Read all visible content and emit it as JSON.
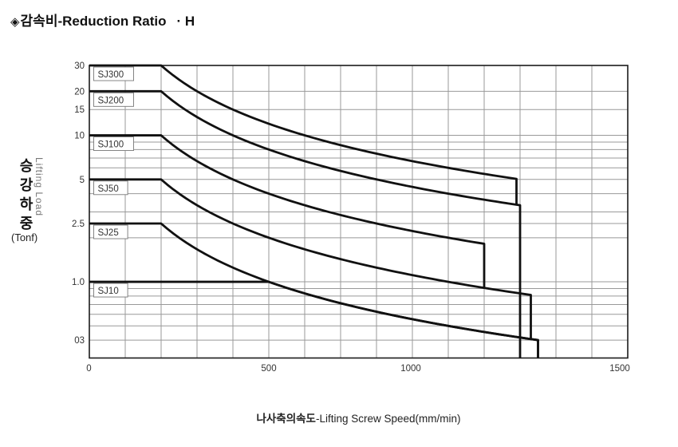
{
  "title": {
    "diamond": "◈",
    "text": "감속비-Reduction Ratio",
    "suffix": "· H"
  },
  "chart_data": {
    "type": "line",
    "title": "감속비-Reduction Ratio · H",
    "x_axis": {
      "label_ko": "나사축의속도",
      "label_en": "-Lifting Screw Speed(mm/min)",
      "scale": "linear",
      "range": [
        0,
        1500
      ],
      "gridline_step": 100,
      "ticks": [
        {
          "label": "0",
          "value": 0
        },
        {
          "label": "500",
          "value": 500
        },
        {
          "label": "1000",
          "value": 1000
        },
        {
          "label": "1500",
          "value": 1500
        }
      ]
    },
    "y_axis": {
      "label_ko": "승강하중",
      "label_ko_chars": [
        "승",
        "강",
        "하",
        "중"
      ],
      "label_en": "Lifting Load",
      "unit": "(Tonf)",
      "scale": "log",
      "range": [
        0.3,
        30
      ],
      "ticks": [
        {
          "label": "30",
          "value": 30
        },
        {
          "label": "20",
          "value": 20
        },
        {
          "label": "15",
          "value": 15
        },
        {
          "label": "10",
          "value": 10
        },
        {
          "label": "5",
          "value": 5
        },
        {
          "label": "2.5",
          "value": 2.5
        },
        {
          "label": "1.0",
          "value": 1
        },
        {
          "label": "03",
          "value": 0.3,
          "pos": 0.4
        }
      ],
      "gridlines": [
        20,
        15,
        10,
        9,
        8,
        7,
        6,
        5,
        4,
        3,
        2.5,
        2,
        1,
        0.9,
        0.8,
        0.7,
        0.6,
        0.5,
        0.4
      ]
    },
    "grid": true,
    "curve_model": "load(Tonf) = power_constant / speed(mm/min) from flat_until_speed to end_speed, then vertical drop at end_speed",
    "series": [
      {
        "name": "SJ300",
        "max_load_tonf": 30,
        "flat_until_speed": 200,
        "power_constant": 6000,
        "end_speed": 1190,
        "end_drop_to_load": 3.36
      },
      {
        "name": "SJ200",
        "max_load_tonf": 20,
        "flat_until_speed": 200,
        "power_constant": 4000,
        "end_speed": 1200,
        "end_drop_to_load": 0.3
      },
      {
        "name": "SJ100",
        "max_load_tonf": 10,
        "flat_until_speed": 200,
        "power_constant": 2000,
        "end_speed": 1100,
        "end_drop_to_load": 0.91
      },
      {
        "name": "SJ50",
        "max_load_tonf": 5,
        "flat_until_speed": 200,
        "power_constant": 1000,
        "end_speed": 1230,
        "end_drop_to_load": 0.41
      },
      {
        "name": "SJ25",
        "max_load_tonf": 2.5,
        "flat_until_speed": 200,
        "power_constant": 500,
        "end_speed": 1250,
        "end_drop_to_load": 0.3
      },
      {
        "name": "SJ10",
        "max_load_tonf": 1,
        "flat_until_speed": 500,
        "power_constant": 500,
        "end_speed": 1250,
        "end_drop_to_load": 0.3
      }
    ],
    "colors": {
      "curve": "#111111",
      "grid": "#999999",
      "border": "#1c1c1c",
      "text": "#333333",
      "background": "#ffffff"
    }
  }
}
